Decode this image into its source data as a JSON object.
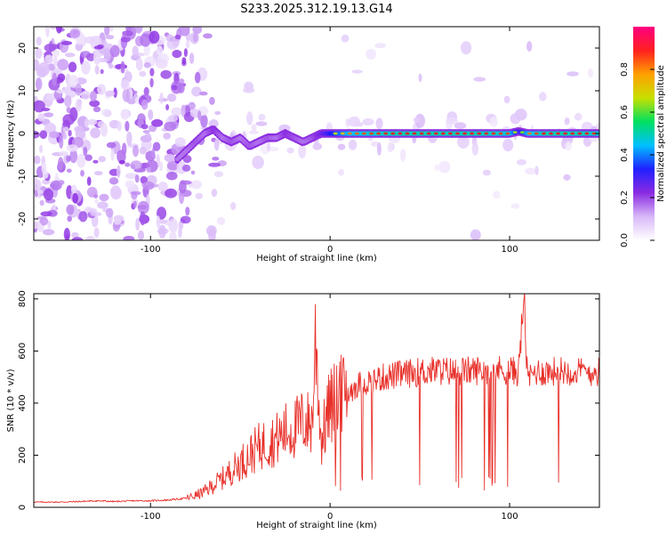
{
  "title": "S233.2025.312.19.13.G14",
  "colors": {
    "snr_line": "#e8302a",
    "frame": "#000000",
    "colorbar_stops": [
      "#ffffff",
      "#d8b8f8",
      "#8a2be2",
      "#2020ff",
      "#00c0ff",
      "#00e060",
      "#c8e000",
      "#ffa000",
      "#ff2020",
      "#ff0080"
    ]
  },
  "chart_data": [
    {
      "type": "heatmap",
      "title": "S233.2025.312.19.13.G14",
      "xlabel": "Height of straight line (km)",
      "ylabel": "Frequency (Hz)",
      "xlim": [
        -165,
        150
      ],
      "ylim": [
        -25,
        25
      ],
      "xticks": [
        -100,
        0,
        100
      ],
      "yticks": [
        -20,
        -10,
        0,
        10,
        20
      ],
      "colorbar": {
        "label": "Normalized spectral amplitude",
        "range": [
          0,
          1
        ],
        "ticks": [
          "0.0",
          "0.2",
          "0.4",
          "0.6",
          "0.8"
        ],
        "tick_values": [
          0.0,
          0.2,
          0.4,
          0.6,
          0.8
        ]
      },
      "ridge": {
        "description_free": true,
        "x": [
          -85,
          -80,
          -75,
          -70,
          -65,
          -60,
          -55,
          -50,
          -45,
          -40,
          -35,
          -30,
          -25,
          -20,
          -15,
          -10,
          -5,
          0,
          10,
          20,
          40,
          60,
          80,
          100,
          105,
          110,
          120,
          140,
          150
        ],
        "frequency": [
          -6,
          -4,
          -2,
          0,
          1,
          -1,
          -2,
          -1,
          -3,
          -2,
          -1,
          -1,
          0,
          -1,
          -2,
          -1,
          0,
          0,
          0,
          0,
          0,
          0,
          0,
          0,
          0.5,
          0,
          0,
          0,
          0
        ],
        "amplitude": [
          0.3,
          0.3,
          0.35,
          0.3,
          0.4,
          0.3,
          0.35,
          0.3,
          0.35,
          0.3,
          0.35,
          0.3,
          0.4,
          0.35,
          0.3,
          0.35,
          0.45,
          0.6,
          0.8,
          0.85,
          0.9,
          0.9,
          0.9,
          0.85,
          0.5,
          0.8,
          0.9,
          0.9,
          0.85
        ]
      }
    },
    {
      "type": "line",
      "xlabel": "Height of straight line (km)",
      "ylabel": "SNR (10 * v/v)",
      "xlim": [
        -165,
        150
      ],
      "ylim": [
        0,
        820
      ],
      "xticks": [
        -100,
        0,
        100
      ],
      "yticks": [
        0,
        200,
        400,
        600,
        800
      ],
      "series": [
        {
          "x": [
            -165,
            -150,
            -140,
            -130,
            -120,
            -110,
            -100,
            -90,
            -80,
            -75,
            -70,
            -65,
            -60,
            -55,
            -50,
            -45,
            -40,
            -35,
            -30,
            -25,
            -20,
            -15,
            -10,
            -8,
            -5,
            0,
            5,
            10,
            15,
            20,
            25,
            30,
            35,
            40,
            50,
            60,
            70,
            80,
            90,
            100,
            105,
            108,
            110,
            112,
            115,
            120,
            130,
            140,
            150
          ],
          "values": [
            20,
            20,
            22,
            25,
            22,
            25,
            25,
            28,
            35,
            45,
            60,
            85,
            110,
            140,
            170,
            200,
            230,
            250,
            260,
            290,
            300,
            330,
            320,
            660,
            250,
            390,
            410,
            440,
            470,
            480,
            490,
            500,
            505,
            510,
            520,
            525,
            520,
            525,
            530,
            525,
            520,
            820,
            480,
            510,
            520,
            520,
            525,
            520,
            520
          ]
        }
      ]
    }
  ]
}
